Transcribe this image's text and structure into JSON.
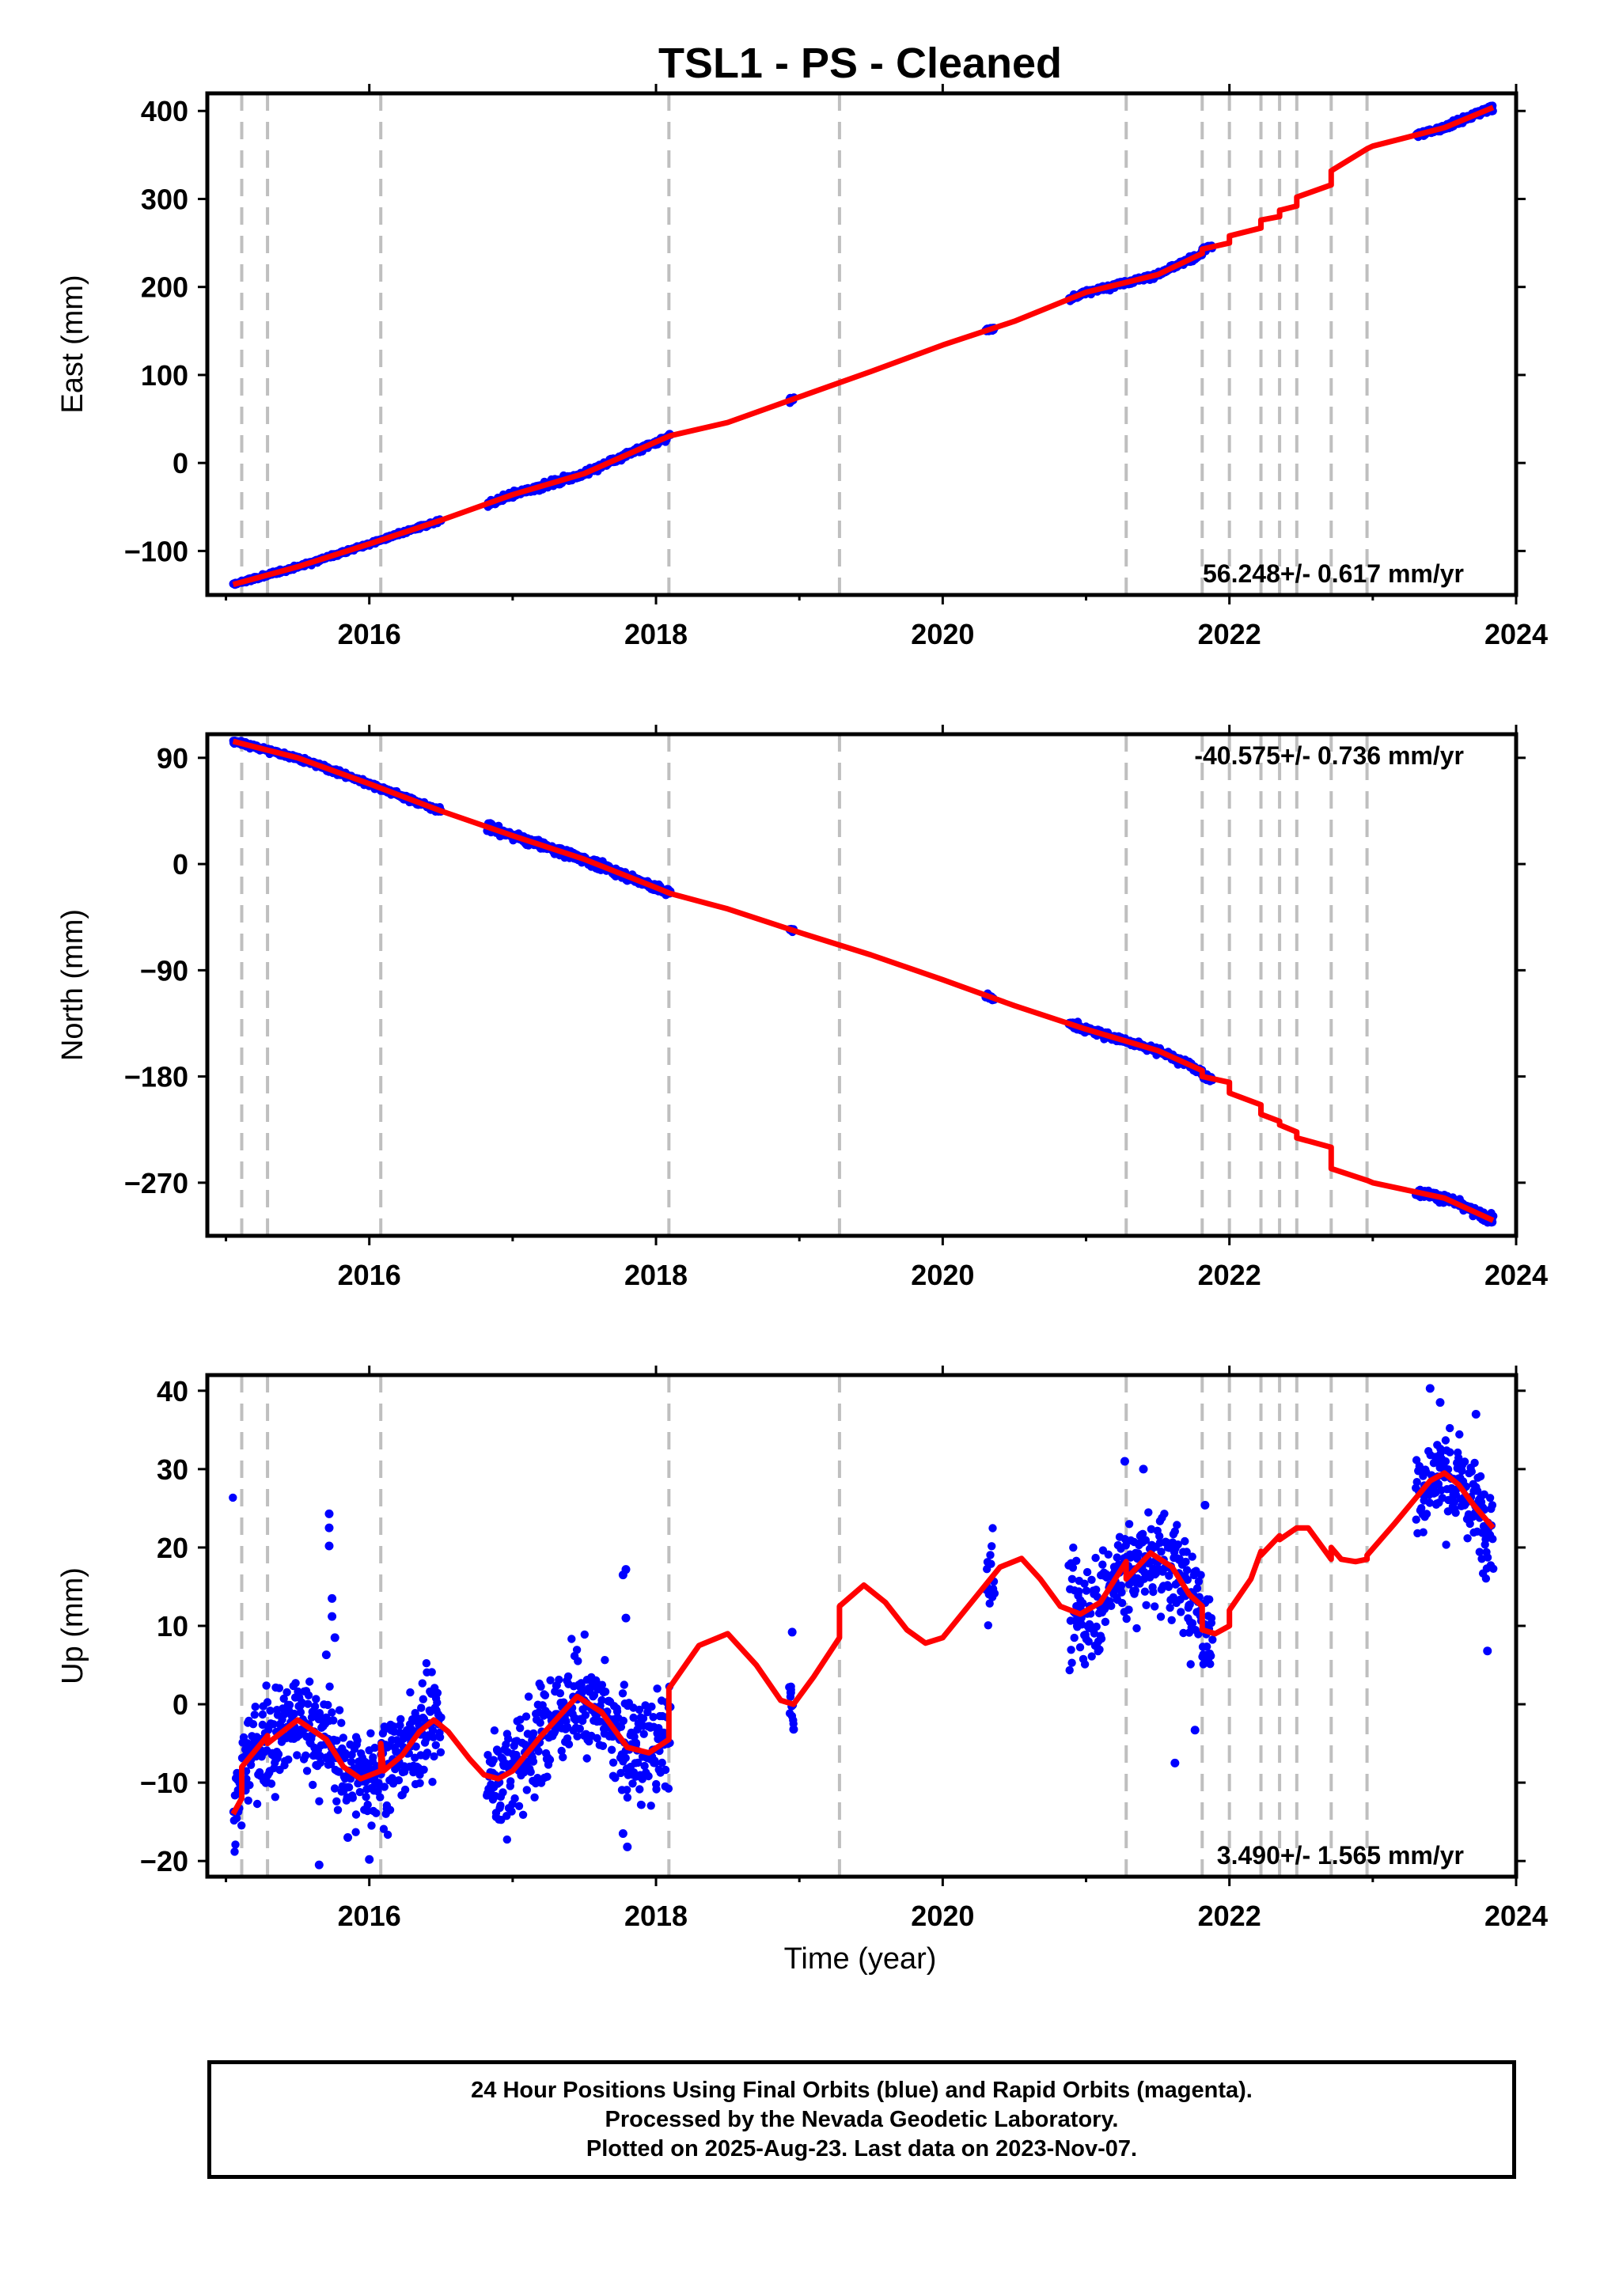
{
  "title": "TSL1  - PS - Cleaned",
  "xlabel": "Time (year)",
  "caption_lines": [
    "24 Hour Positions Using Final Orbits (blue) and Rapid Orbits (magenta).",
    "Processed by the Nevada Geodetic Laboratory.",
    "Plotted on 2025-Aug-23. Last data on 2023-Nov-07."
  ],
  "colors": {
    "data": "#0000ff",
    "model": "#ff0000",
    "steps": "#bfbfbf",
    "axis": "#000000"
  },
  "chart_data": [
    {
      "type": "scatter",
      "ylabel": "East (mm)",
      "rate_label": "56.248+/- 0.617 mm/yr",
      "rate_position": "bottom-right",
      "xlim": [
        2014.87,
        2024.0
      ],
      "ylim": [
        -150,
        420
      ],
      "x_ticks": [
        "2016",
        "2018",
        "2020",
        "2022",
        "2024"
      ],
      "y_ticks": [
        "400",
        "300",
        "200",
        "100",
        "0",
        "−100"
      ],
      "y_tick_values": [
        400,
        300,
        200,
        100,
        0,
        -100
      ],
      "step_dates": [
        2015.11,
        2015.29,
        2016.08,
        2018.09,
        2019.28,
        2021.28,
        2021.81,
        2022.0,
        2022.22,
        2022.35,
        2022.47,
        2022.71,
        2022.96
      ],
      "data_segments": [
        {
          "x": [
            2015.05,
            2016.5
          ],
          "noise": 1.5
        },
        {
          "x": [
            2016.82,
            2018.1
          ],
          "noise": 2.5
        },
        {
          "x": [
            2018.93,
            2018.96
          ],
          "noise": 2
        },
        {
          "x": [
            2020.3,
            2020.36
          ],
          "noise": 1.5
        },
        {
          "x": [
            2020.88,
            2021.88
          ],
          "noise": 2
        },
        {
          "x": [
            2023.3,
            2023.84
          ],
          "noise": 2.5
        }
      ],
      "model": [
        [
          2015.05,
          -138
        ],
        [
          2015.5,
          -118
        ],
        [
          2016.0,
          -92
        ],
        [
          2016.5,
          -65
        ],
        [
          2017.0,
          -36
        ],
        [
          2017.5,
          -12
        ],
        [
          2018.0,
          24
        ],
        [
          2018.1,
          31
        ],
        [
          2018.5,
          46
        ],
        [
          2019.0,
          75
        ],
        [
          2019.5,
          104
        ],
        [
          2020.0,
          134
        ],
        [
          2020.5,
          161
        ],
        [
          2021.0,
          194
        ],
        [
          2021.5,
          214
        ],
        [
          2021.81,
          238
        ],
        [
          2021.81,
          243
        ],
        [
          2022.0,
          250
        ],
        [
          2022.0,
          258
        ],
        [
          2022.22,
          267
        ],
        [
          2022.22,
          276
        ],
        [
          2022.35,
          280
        ],
        [
          2022.35,
          287
        ],
        [
          2022.47,
          292
        ],
        [
          2022.47,
          302
        ],
        [
          2022.71,
          316
        ],
        [
          2022.71,
          332
        ],
        [
          2022.96,
          357
        ],
        [
          2023.0,
          360
        ],
        [
          2023.5,
          381
        ],
        [
          2023.84,
          404
        ]
      ]
    },
    {
      "type": "scatter",
      "ylabel": "North (mm)",
      "rate_label": "-40.575+/- 0.736 mm/yr",
      "rate_position": "top-right",
      "xlim": [
        2014.87,
        2024.0
      ],
      "ylim": [
        -315,
        110
      ],
      "x_ticks": [
        "2016",
        "2018",
        "2020",
        "2022",
        "2024"
      ],
      "y_ticks": [
        "90",
        "0",
        "−90",
        "−180",
        "−270"
      ],
      "y_tick_values": [
        90,
        0,
        -90,
        -180,
        -270
      ],
      "step_dates": [
        2015.11,
        2015.29,
        2016.08,
        2018.09,
        2019.28,
        2021.28,
        2021.81,
        2022.0,
        2022.22,
        2022.35,
        2022.47,
        2022.71,
        2022.96
      ],
      "data_segments": [
        {
          "x": [
            2015.05,
            2016.5
          ],
          "noise": 1.5
        },
        {
          "x": [
            2016.82,
            2018.1
          ],
          "noise": 2.5
        },
        {
          "x": [
            2018.93,
            2018.96
          ],
          "noise": 1.5
        },
        {
          "x": [
            2020.3,
            2020.36
          ],
          "noise": 1.5
        },
        {
          "x": [
            2020.88,
            2021.88
          ],
          "noise": 2
        },
        {
          "x": [
            2023.3,
            2023.84
          ],
          "noise": 2.5
        }
      ],
      "model": [
        [
          2015.05,
          104
        ],
        [
          2015.5,
          90
        ],
        [
          2016.0,
          68
        ],
        [
          2016.5,
          45
        ],
        [
          2017.0,
          24
        ],
        [
          2017.5,
          4
        ],
        [
          2018.0,
          -20
        ],
        [
          2018.1,
          -25
        ],
        [
          2018.5,
          -38
        ],
        [
          2019.0,
          -58
        ],
        [
          2019.5,
          -77
        ],
        [
          2020.0,
          -98
        ],
        [
          2020.5,
          -120
        ],
        [
          2021.0,
          -140
        ],
        [
          2021.5,
          -158
        ],
        [
          2021.81,
          -175
        ],
        [
          2021.81,
          -180
        ],
        [
          2022.0,
          -185
        ],
        [
          2022.0,
          -194
        ],
        [
          2022.22,
          -204
        ],
        [
          2022.22,
          -212
        ],
        [
          2022.35,
          -218
        ],
        [
          2022.35,
          -221
        ],
        [
          2022.47,
          -227
        ],
        [
          2022.47,
          -232
        ],
        [
          2022.71,
          -240
        ],
        [
          2022.71,
          -258
        ],
        [
          2022.96,
          -268
        ],
        [
          2023.0,
          -270
        ],
        [
          2023.5,
          -283
        ],
        [
          2023.84,
          -302
        ]
      ]
    },
    {
      "type": "scatter",
      "ylabel": "Up (mm)",
      "rate_label": "3.490+/- 1.565 mm/yr",
      "rate_position": "bottom-right",
      "xlim": [
        2014.87,
        2024.0
      ],
      "ylim": [
        -22,
        42
      ],
      "x_ticks": [
        "2016",
        "2018",
        "2020",
        "2022",
        "2024"
      ],
      "y_ticks": [
        "40",
        "30",
        "20",
        "10",
        "0",
        "−10",
        "−20"
      ],
      "y_tick_values": [
        40,
        30,
        20,
        10,
        0,
        -10,
        -20
      ],
      "step_dates": [
        2015.11,
        2015.29,
        2016.08,
        2018.09,
        2019.28,
        2021.28,
        2021.81,
        2022.0,
        2022.22,
        2022.35,
        2022.47,
        2022.71,
        2022.96
      ],
      "data_segments": [
        {
          "x": [
            2015.05,
            2016.5
          ],
          "noise": 4.5
        },
        {
          "x": [
            2016.82,
            2018.1
          ],
          "noise": 4.5
        },
        {
          "x": [
            2018.93,
            2018.96
          ],
          "noise": 3
        },
        {
          "x": [
            2020.3,
            2020.36
          ],
          "noise": 3
        },
        {
          "x": [
            2020.88,
            2021.88
          ],
          "noise": 4.5
        },
        {
          "x": [
            2023.3,
            2023.84
          ],
          "noise": 4
        }
      ],
      "outliers": [
        [
          2015.72,
          24.3
        ],
        [
          2015.72,
          22.5
        ],
        [
          2015.72,
          20.2
        ],
        [
          2015.74,
          13.5
        ],
        [
          2015.74,
          11.2
        ],
        [
          2015.76,
          8.5
        ],
        [
          2015.7,
          6.3
        ],
        [
          2015.85,
          -17
        ],
        [
          2015.65,
          -20.5
        ],
        [
          2016.0,
          -19.8
        ],
        [
          2017.79,
          17.2
        ],
        [
          2017.77,
          16.5
        ],
        [
          2017.79,
          11.0
        ],
        [
          2017.8,
          -18.2
        ],
        [
          2017.77,
          -16.5
        ],
        [
          2018.96,
          -3.2
        ],
        [
          2018.95,
          9.2
        ],
        [
          2018.94,
          1.5
        ],
        [
          2021.27,
          31.0
        ],
        [
          2021.4,
          30.0
        ],
        [
          2021.62,
          -7.5
        ],
        [
          2021.76,
          -3.3
        ],
        [
          2021.83,
          25.4
        ],
        [
          2023.72,
          37.0
        ],
        [
          2023.8,
          6.8
        ],
        [
          2023.47,
          38.5
        ],
        [
          2023.4,
          40.3
        ]
      ],
      "model": [
        [
          2015.05,
          -14
        ],
        [
          2015.11,
          -12
        ],
        [
          2015.11,
          -8
        ],
        [
          2015.29,
          -4
        ],
        [
          2015.29,
          -5
        ],
        [
          2015.5,
          -2
        ],
        [
          2015.7,
          -4.5
        ],
        [
          2015.82,
          -8
        ],
        [
          2015.94,
          -9.5
        ],
        [
          2016.08,
          -8.5
        ],
        [
          2016.08,
          -5
        ],
        [
          2016.1,
          -8.5
        ],
        [
          2016.23,
          -6.5
        ],
        [
          2016.35,
          -3.5
        ],
        [
          2016.45,
          -2
        ],
        [
          2016.55,
          -3.5
        ],
        [
          2016.7,
          -7
        ],
        [
          2016.8,
          -9
        ],
        [
          2016.9,
          -9.5
        ],
        [
          2017.0,
          -8.5
        ],
        [
          2017.2,
          -4
        ],
        [
          2017.45,
          1
        ],
        [
          2017.62,
          -1
        ],
        [
          2017.8,
          -5.5
        ],
        [
          2017.95,
          -6.2
        ],
        [
          2018.09,
          -4.5
        ],
        [
          2018.09,
          2
        ],
        [
          2018.3,
          7.5
        ],
        [
          2018.5,
          9
        ],
        [
          2018.7,
          5
        ],
        [
          2018.87,
          0.5
        ],
        [
          2018.96,
          0
        ],
        [
          2019.1,
          3.5
        ],
        [
          2019.28,
          8.5
        ],
        [
          2019.28,
          12.5
        ],
        [
          2019.45,
          15.2
        ],
        [
          2019.6,
          13
        ],
        [
          2019.75,
          9.5
        ],
        [
          2019.88,
          7.8
        ],
        [
          2020.0,
          8.5
        ],
        [
          2020.2,
          13
        ],
        [
          2020.4,
          17.5
        ],
        [
          2020.55,
          18.6
        ],
        [
          2020.68,
          16
        ],
        [
          2020.82,
          12.5
        ],
        [
          2020.96,
          11.5
        ],
        [
          2021.1,
          13
        ],
        [
          2021.28,
          18.2
        ],
        [
          2021.28,
          16
        ],
        [
          2021.45,
          19.3
        ],
        [
          2021.6,
          17.5
        ],
        [
          2021.72,
          14
        ],
        [
          2021.81,
          12.5
        ],
        [
          2021.81,
          9.5
        ],
        [
          2021.9,
          9
        ],
        [
          2022.0,
          10
        ],
        [
          2022.0,
          12
        ],
        [
          2022.15,
          16
        ],
        [
          2022.22,
          19.5
        ],
        [
          2022.22,
          19
        ],
        [
          2022.35,
          21.5
        ],
        [
          2022.35,
          21
        ],
        [
          2022.47,
          22.5
        ],
        [
          2022.55,
          22.5
        ],
        [
          2022.71,
          18.5
        ],
        [
          2022.71,
          20
        ],
        [
          2022.78,
          18.5
        ],
        [
          2022.88,
          18.2
        ],
        [
          2022.96,
          18.5
        ],
        [
          2022.96,
          19
        ],
        [
          2023.15,
          23
        ],
        [
          2023.4,
          28.5
        ],
        [
          2023.5,
          29.5
        ],
        [
          2023.6,
          28
        ],
        [
          2023.7,
          25.5
        ],
        [
          2023.84,
          22.5
        ]
      ]
    }
  ]
}
